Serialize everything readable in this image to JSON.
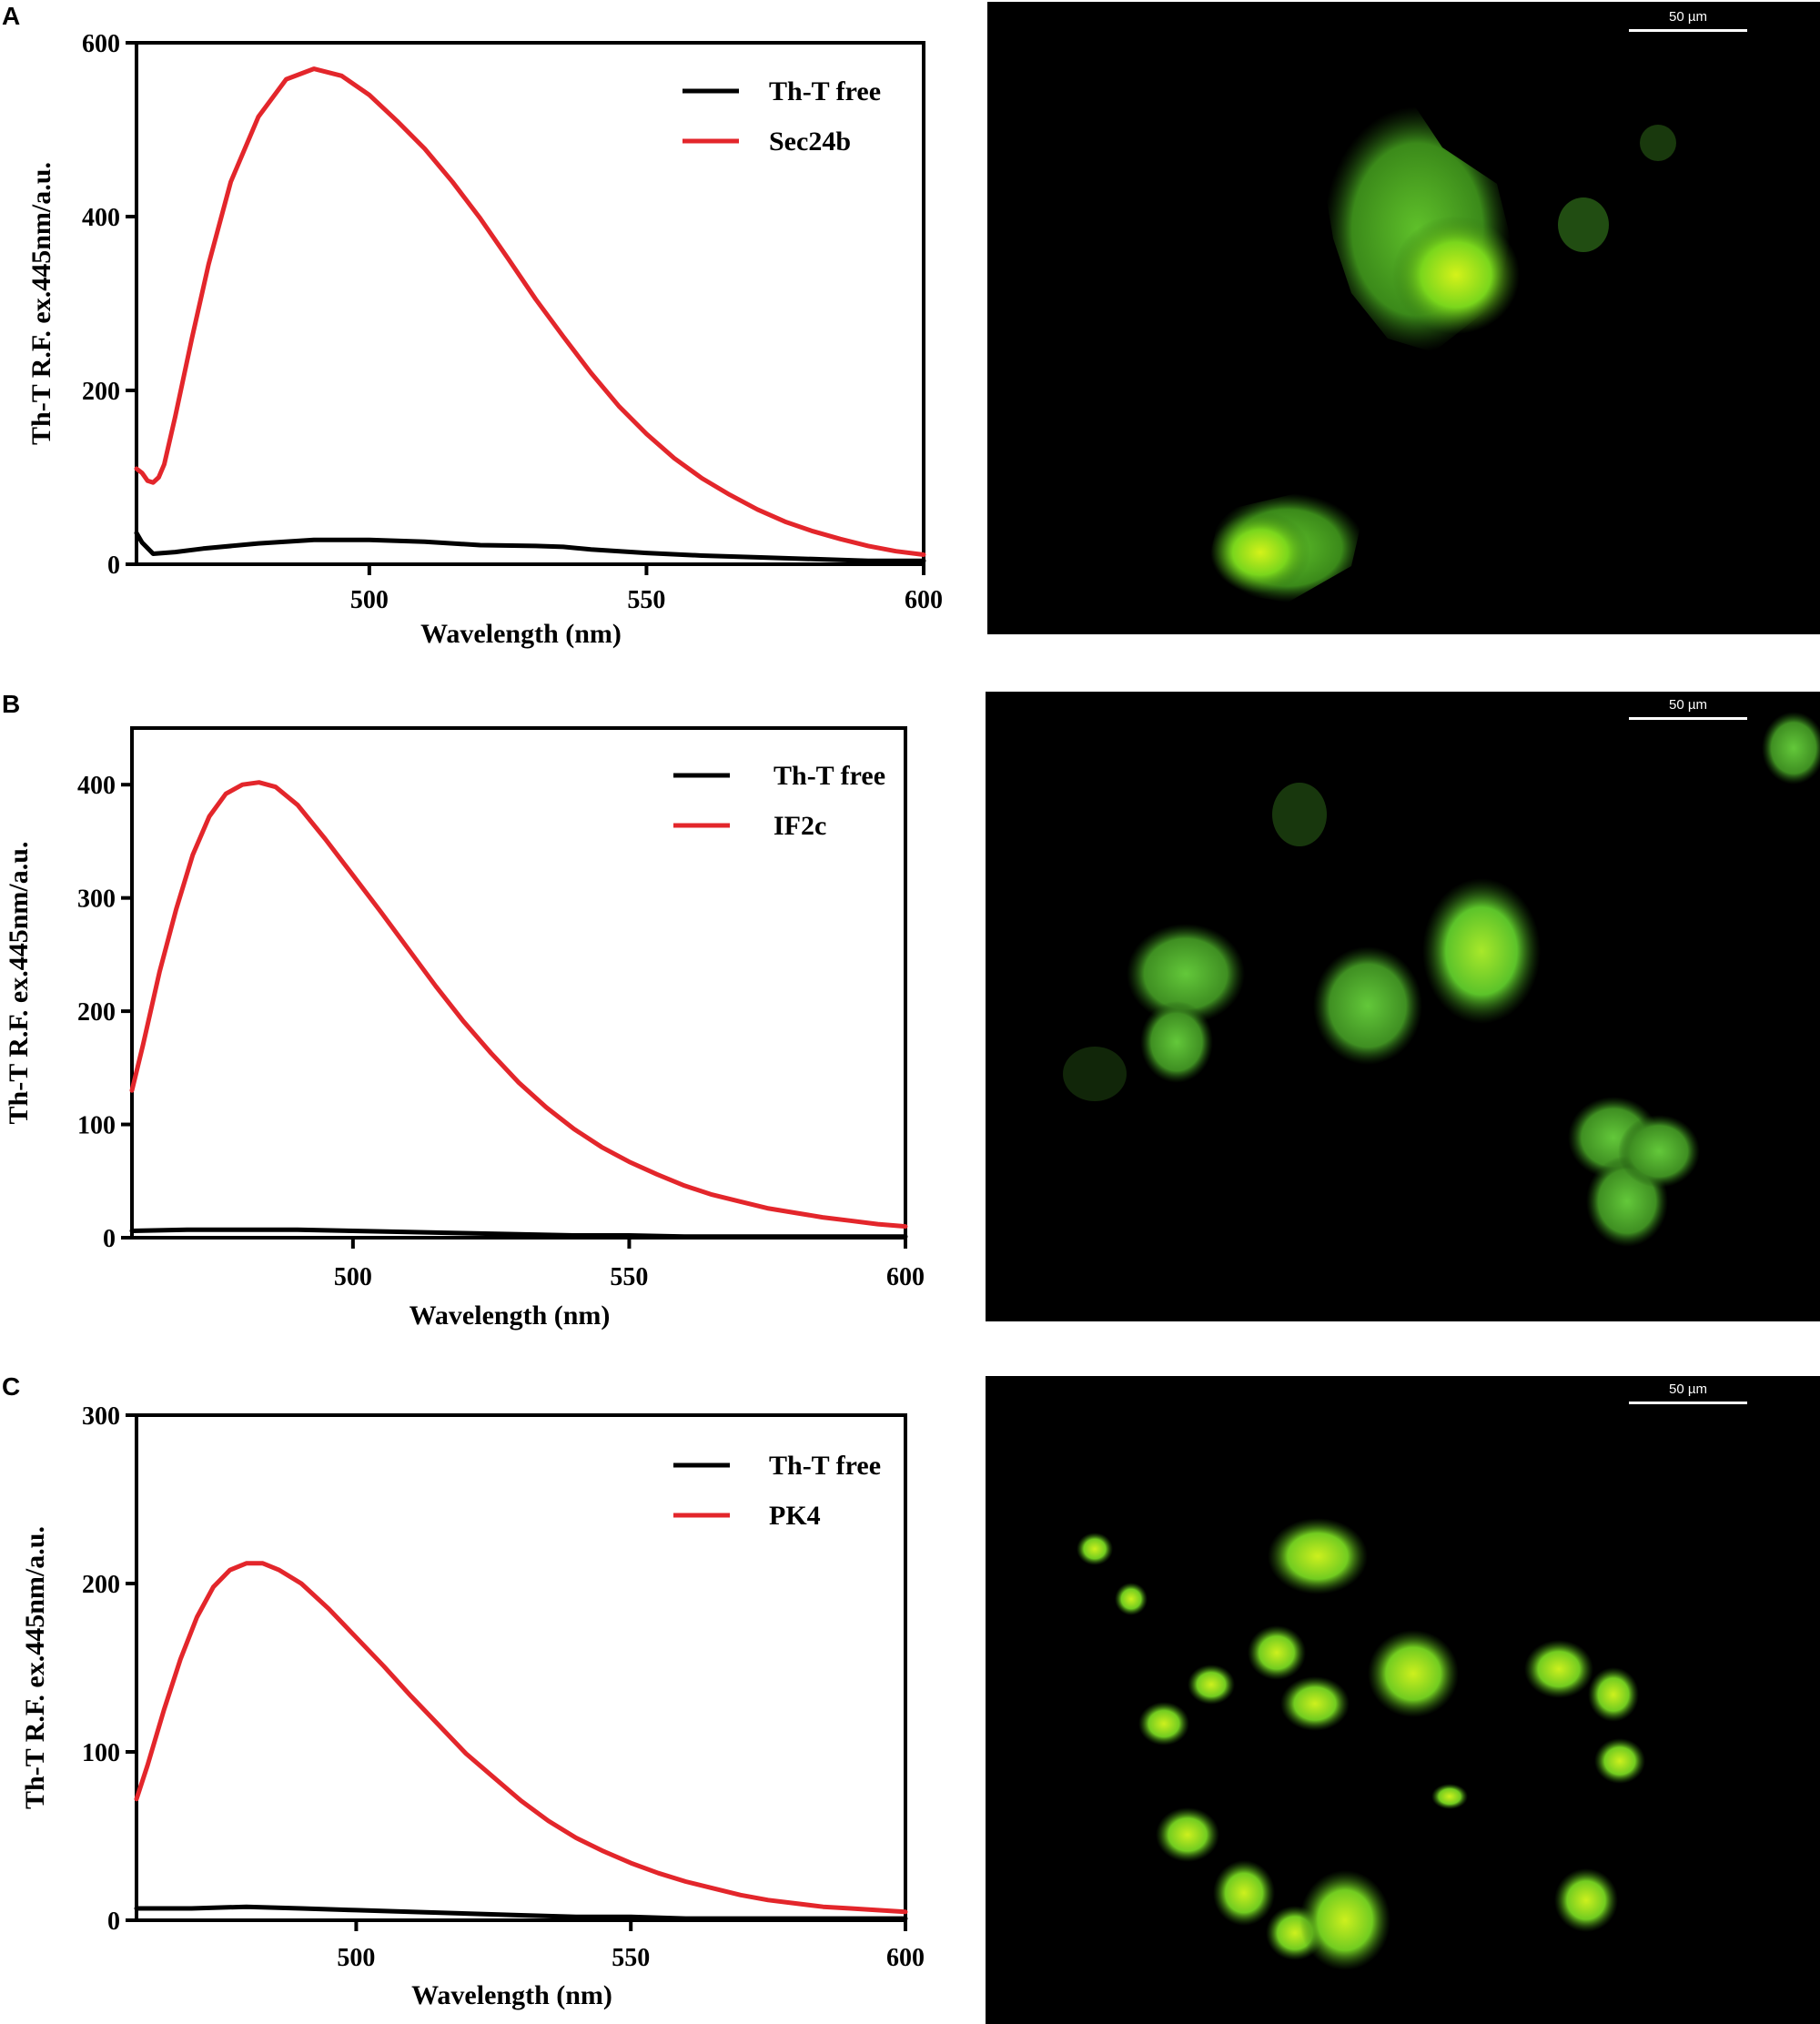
{
  "panels": [
    {
      "letter": "A",
      "scale_label": "50 µm"
    },
    {
      "letter": "B",
      "scale_label": "50 µm"
    },
    {
      "letter": "C",
      "scale_label": "50 µm"
    }
  ],
  "chart_data": [
    {
      "type": "line",
      "panel": "A",
      "xlabel": "Wavelength (nm)",
      "ylabel": "Th-T R.F. ex.445nm/a.u.",
      "xlim": [
        458,
        600
      ],
      "ylim": [
        0,
        600
      ],
      "xticks": [
        500,
        550,
        600
      ],
      "yticks": [
        0,
        200,
        400,
        600
      ],
      "legend": "top-right",
      "series": [
        {
          "name": "Th-T free",
          "color": "#000000",
          "x": [
            458,
            459,
            461,
            465,
            470,
            480,
            490,
            500,
            510,
            520,
            530,
            535,
            540,
            550,
            560,
            570,
            580,
            590,
            600
          ],
          "y": [
            36,
            25,
            12,
            14,
            18,
            24,
            28,
            28,
            26,
            22,
            21,
            20,
            17,
            13,
            10,
            8,
            6,
            4,
            4
          ]
        },
        {
          "name": "Sec24b",
          "color": "#e3262b",
          "x": [
            458,
            459,
            460,
            461,
            462,
            463,
            465,
            468,
            471,
            475,
            480,
            485,
            490,
            495,
            500,
            505,
            510,
            515,
            520,
            525,
            530,
            535,
            540,
            545,
            550,
            555,
            560,
            565,
            570,
            575,
            580,
            585,
            590,
            595,
            600
          ],
          "y": [
            110,
            105,
            96,
            94,
            100,
            115,
            170,
            260,
            345,
            440,
            515,
            558,
            570,
            562,
            540,
            510,
            478,
            440,
            398,
            352,
            305,
            262,
            220,
            182,
            150,
            122,
            99,
            80,
            63,
            49,
            38,
            29,
            21,
            15,
            11
          ]
        }
      ]
    },
    {
      "type": "line",
      "panel": "B",
      "xlabel": "Wavelength (nm)",
      "ylabel": "Th-T R.F. ex.445nm/a.u.",
      "xlim": [
        460,
        600
      ],
      "ylim": [
        0,
        450
      ],
      "xticks": [
        500,
        550,
        600
      ],
      "yticks": [
        0,
        100,
        200,
        300,
        400
      ],
      "legend": "top-right",
      "series": [
        {
          "name": "Th-T free",
          "color": "#000000",
          "x": [
            460,
            470,
            480,
            490,
            500,
            510,
            520,
            530,
            540,
            550,
            560,
            570,
            580,
            590,
            600
          ],
          "y": [
            6,
            7,
            7,
            7,
            6,
            5,
            4,
            3,
            2,
            2,
            1,
            1,
            1,
            1,
            1
          ]
        },
        {
          "name": "IF2c",
          "color": "#e3262b",
          "x": [
            460,
            462,
            465,
            468,
            471,
            474,
            477,
            480,
            483,
            486,
            490,
            495,
            500,
            505,
            510,
            515,
            520,
            525,
            530,
            535,
            540,
            545,
            550,
            555,
            560,
            565,
            570,
            575,
            580,
            585,
            590,
            595,
            600
          ],
          "y": [
            130,
            170,
            235,
            290,
            338,
            372,
            392,
            400,
            402,
            398,
            382,
            352,
            320,
            288,
            255,
            222,
            191,
            163,
            137,
            115,
            96,
            80,
            67,
            56,
            46,
            38,
            32,
            26,
            22,
            18,
            15,
            12,
            10
          ]
        }
      ]
    },
    {
      "type": "line",
      "panel": "C",
      "xlabel": "Wavelength (nm)",
      "ylabel": "Th-T R.F. ex.445nm/a.u.",
      "xlim": [
        460,
        600
      ],
      "ylim": [
        0,
        300
      ],
      "xticks": [
        500,
        550,
        600
      ],
      "yticks": [
        0,
        100,
        200,
        300
      ],
      "legend": "top-right",
      "series": [
        {
          "name": "Th-T free",
          "color": "#000000",
          "x": [
            460,
            470,
            480,
            490,
            500,
            510,
            520,
            530,
            540,
            550,
            560,
            570,
            580,
            590,
            600
          ],
          "y": [
            7,
            7,
            8,
            7,
            6,
            5,
            4,
            3,
            2,
            2,
            1,
            1,
            1,
            1,
            1
          ]
        },
        {
          "name": "PK4",
          "color": "#e3262b",
          "x": [
            460,
            462,
            465,
            468,
            471,
            474,
            477,
            480,
            483,
            486,
            490,
            495,
            500,
            505,
            510,
            515,
            520,
            525,
            530,
            535,
            540,
            545,
            550,
            555,
            560,
            565,
            570,
            575,
            580,
            585,
            590,
            595,
            600
          ],
          "y": [
            72,
            92,
            125,
            155,
            180,
            198,
            208,
            212,
            212,
            208,
            200,
            185,
            168,
            151,
            133,
            116,
            99,
            85,
            71,
            59,
            49,
            41,
            34,
            28,
            23,
            19,
            15,
            12,
            10,
            8,
            7,
            6,
            5
          ]
        }
      ]
    }
  ]
}
